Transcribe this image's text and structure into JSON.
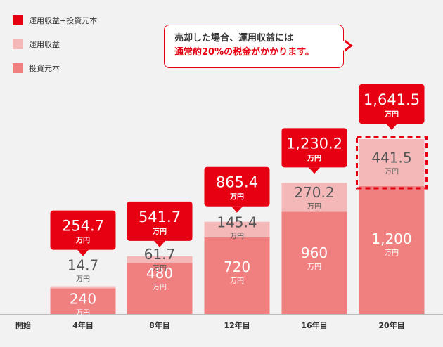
{
  "legend": [
    {
      "label": "運用収益+投資元本",
      "color": "#e60012"
    },
    {
      "label": "運用収益",
      "color": "#f5b8b8"
    },
    {
      "label": "投資元本",
      "color": "#f08080"
    }
  ],
  "callout": {
    "line1": "売却した場合、運用収益には",
    "line2": "通常約20%の税金がかかります。"
  },
  "unit": "万円",
  "chart_data": {
    "type": "bar",
    "stacked": true,
    "categories": [
      "開始",
      "4年目",
      "8年目",
      "12年目",
      "16年目",
      "20年目"
    ],
    "series": [
      {
        "name": "投資元本",
        "values": [
          0,
          240,
          480,
          720,
          960,
          1200
        ],
        "labels": [
          "",
          "240",
          "480",
          "720",
          "960",
          "1,200"
        ],
        "color": "#f08080"
      },
      {
        "name": "運用収益",
        "values": [
          0,
          14.7,
          61.7,
          145.4,
          270.2,
          441.5
        ],
        "labels": [
          "",
          "14.7",
          "61.7",
          "145.4",
          "270.2",
          "441.5"
        ],
        "color": "#f5b8b8"
      }
    ],
    "totals": {
      "name": "運用収益+投資元本",
      "values": [
        0,
        254.7,
        541.7,
        865.4,
        1230.2,
        1641.5
      ],
      "labels": [
        "",
        "254.7",
        "541.7",
        "865.4",
        "1,230.2",
        "1,641.5"
      ],
      "color": "#e60012"
    },
    "ylim": [
      0,
      1641.5
    ],
    "highlight_category": "20年目",
    "highlight_note": "dashed red box around 運用収益 segment"
  }
}
